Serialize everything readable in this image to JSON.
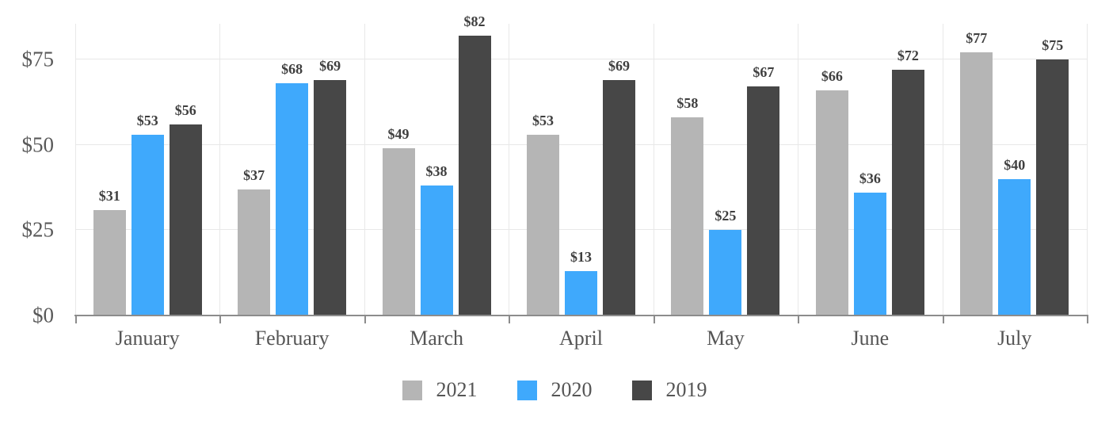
{
  "chart_data": {
    "type": "bar",
    "title": "",
    "xlabel": "",
    "ylabel": "",
    "categories": [
      "January",
      "February",
      "March",
      "April",
      "May",
      "June",
      "July"
    ],
    "series": [
      {
        "name": "2021",
        "color": "#b5b5b5",
        "values": [
          31,
          37,
          49,
          53,
          58,
          66,
          77
        ]
      },
      {
        "name": "2020",
        "color": "#3fa9fc",
        "values": [
          53,
          68,
          38,
          13,
          25,
          36,
          40
        ]
      },
      {
        "name": "2019",
        "color": "#474747",
        "values": [
          56,
          69,
          82,
          69,
          67,
          72,
          75
        ]
      }
    ],
    "value_prefix": "$",
    "y_ticks": [
      "$0",
      "$25",
      "$50",
      "$75"
    ],
    "y_tick_values": [
      0,
      25,
      50,
      75
    ],
    "ylim": [
      0,
      85.45
    ],
    "grid": true,
    "legend_position": "bottom"
  },
  "style": {
    "grid_color": "#e8e8e8",
    "axis_color": "#8c8c8c",
    "value_label_color": "#3f3f3f",
    "tick_label_color": "#595959"
  }
}
